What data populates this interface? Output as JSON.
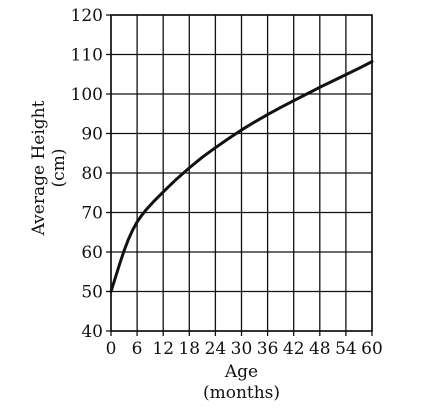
{
  "chart_data": {
    "type": "line",
    "title": "",
    "xlabel_line1": "Age",
    "xlabel_line2": "(months)",
    "ylabel_line1": "Average Height",
    "ylabel_line2": "(cm)",
    "xlim": [
      0,
      60
    ],
    "ylim": [
      40,
      120
    ],
    "xticks": [
      0,
      6,
      12,
      18,
      24,
      30,
      36,
      42,
      48,
      54,
      60
    ],
    "yticks": [
      40,
      50,
      60,
      70,
      80,
      90,
      100,
      110,
      120
    ],
    "grid": true,
    "series": [
      {
        "x": [
          0,
          1,
          2,
          3,
          4,
          5,
          6,
          7,
          8,
          10,
          12,
          15,
          18,
          21,
          24,
          27,
          30,
          33,
          36,
          39,
          42,
          45,
          48,
          51,
          54,
          57,
          60
        ],
        "values": [
          50,
          53.5,
          57,
          60.3,
          63.2,
          65.6,
          67.6,
          69.2,
          70.6,
          73.0,
          75.2,
          78.4,
          81.3,
          84.0,
          86.4,
          88.7,
          90.9,
          92.9,
          94.8,
          96.6,
          98.3,
          100.0,
          101.7,
          103.3,
          104.9,
          106.5,
          108.2
        ]
      }
    ]
  }
}
